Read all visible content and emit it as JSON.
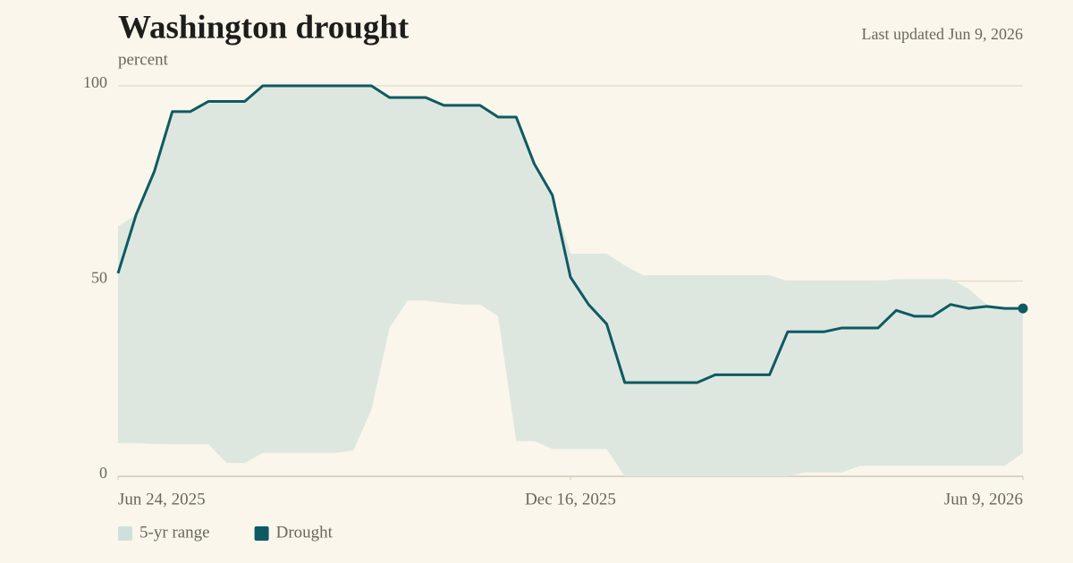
{
  "chart_data": {
    "type": "line",
    "title": "Washington drought",
    "subtitle": "percent",
    "note": "Last updated Jun 9, 2026",
    "x": [
      "2025-06-24",
      "2025-07-01",
      "2025-07-08",
      "2025-07-15",
      "2025-07-22",
      "2025-07-29",
      "2025-08-05",
      "2025-08-12",
      "2025-08-19",
      "2025-08-26",
      "2025-09-02",
      "2025-09-09",
      "2025-09-16",
      "2025-09-23",
      "2025-09-30",
      "2025-10-07",
      "2025-10-14",
      "2025-10-21",
      "2025-10-28",
      "2025-11-04",
      "2025-11-11",
      "2025-11-18",
      "2025-11-25",
      "2025-12-02",
      "2025-12-09",
      "2025-12-16",
      "2025-12-23",
      "2025-12-30",
      "2026-01-06",
      "2026-01-13",
      "2026-01-20",
      "2026-01-27",
      "2026-02-03",
      "2026-02-10",
      "2026-02-17",
      "2026-02-24",
      "2026-03-03",
      "2026-03-10",
      "2026-03-17",
      "2026-03-24",
      "2026-03-31",
      "2026-04-07",
      "2026-04-14",
      "2026-04-21",
      "2026-04-28",
      "2026-05-05",
      "2026-05-12",
      "2026-05-19",
      "2026-05-26",
      "2026-06-02",
      "2026-06-09"
    ],
    "series": [
      {
        "name": "5-yr range",
        "color": "#dde7e0",
        "low": [
          8.5,
          8.5,
          8.3,
          8.2,
          8.2,
          8.2,
          3.4,
          3.4,
          6,
          6,
          6,
          6,
          6,
          6.6,
          17,
          38,
          45,
          45,
          44.4,
          44,
          44,
          41,
          9,
          9,
          7,
          7,
          7,
          7,
          0,
          0,
          0,
          0,
          0,
          0,
          0,
          0,
          0,
          0,
          1,
          1,
          1,
          2.7,
          2.7,
          2.7,
          2.7,
          2.7,
          2.7,
          2.7,
          2.7,
          2.7,
          6
        ],
        "high": [
          64,
          67,
          78,
          93.4,
          93.4,
          96,
          96,
          96,
          100,
          100,
          100,
          100,
          100,
          100,
          100,
          97,
          97,
          97,
          95,
          95,
          95,
          92,
          92,
          80,
          72,
          57,
          57,
          57,
          54,
          51.5,
          51.5,
          51.5,
          51.5,
          51.5,
          51.5,
          51.5,
          51.5,
          50,
          50,
          50,
          50,
          50,
          50,
          50.5,
          50.5,
          50.5,
          50.5,
          48,
          44,
          43,
          43
        ]
      },
      {
        "name": "Drought",
        "color": "#0f5a62",
        "values": [
          52,
          67,
          78,
          93.4,
          93.4,
          96,
          96,
          96,
          100,
          100,
          100,
          100,
          100,
          100,
          100,
          97,
          97,
          97,
          95,
          95,
          95,
          92,
          92,
          80,
          72,
          51,
          44,
          39,
          24,
          24,
          24,
          24,
          24,
          26,
          26,
          26,
          26,
          37,
          37,
          37,
          38,
          38,
          38,
          42.5,
          41,
          41,
          44,
          43,
          43.5,
          43,
          43
        ]
      }
    ],
    "ylim": [
      0,
      100
    ],
    "yticks": [
      0,
      50,
      100
    ],
    "xlim": [
      "2025-06-24",
      "2026-06-09"
    ],
    "xticks": [
      {
        "value": "2025-06-24",
        "label": "Jun 24, 2025"
      },
      {
        "value": "2025-12-16",
        "label": "Dec 16, 2025"
      },
      {
        "value": "2026-06-09",
        "label": "Jun 9, 2026"
      }
    ],
    "grid": true
  }
}
